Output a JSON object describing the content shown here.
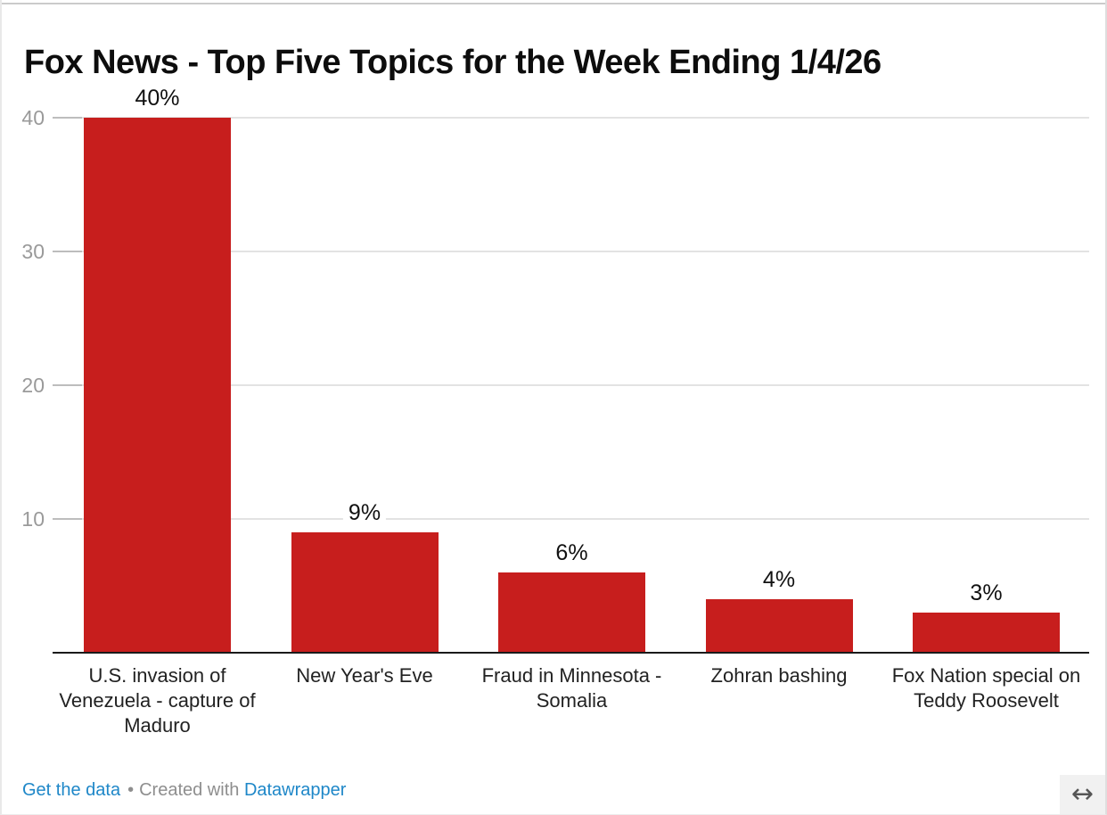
{
  "page": {
    "title": "Fox News - Top Five Topics for the Week Ending 1/4/26"
  },
  "chart_data": {
    "type": "bar",
    "title": "Fox News - Top Five Topics for the Week Ending 1/4/26",
    "categories": [
      "U.S. invasion of Venezuela - capture of Maduro",
      "New Year's Eve",
      "Fraud in Minnesota - Somalia",
      "Zohran bashing",
      "Fox Nation special on Teddy Roosevelt"
    ],
    "values": [
      40,
      9,
      6,
      4,
      3
    ],
    "value_labels": [
      "40%",
      "9%",
      "6%",
      "4%",
      "3%"
    ],
    "unit": "percent",
    "y_ticks": [
      40,
      30,
      20,
      10
    ],
    "ylim": [
      0,
      40
    ],
    "grid": true,
    "legend_position": "none",
    "bar_color": "#c71e1d"
  },
  "colors": {
    "bar": "#c71e1d",
    "link": "#1e87c8",
    "axis_tick_label": "#9a9a9a",
    "gridline": "#e3e3e3",
    "tick_mark": "#bdbdbd",
    "baseline": "#1a1a1a",
    "value_label": "#111111",
    "category_label": "#222222",
    "footer_text": "#8e8e8e",
    "expand_button_bg": "#f1f1f1"
  },
  "footer": {
    "get_the_data": "Get the data",
    "separator": "•",
    "created_with": "Created with",
    "datawrapper": "Datawrapper"
  },
  "controls": {
    "expand_arrow": "↔"
  }
}
